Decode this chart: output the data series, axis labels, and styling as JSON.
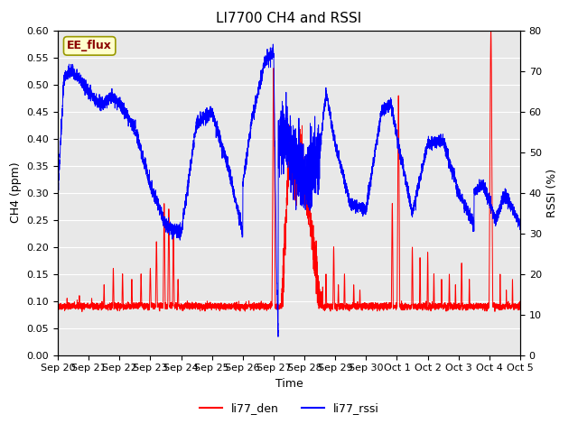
{
  "title": "LI7700 CH4 and RSSI",
  "xlabel": "Time",
  "ylabel_left": "CH4 (ppm)",
  "ylabel_right": "RSSI (%)",
  "annotation": "EE_flux",
  "legend_labels": [
    "li77_den",
    "li77_rssi"
  ],
  "legend_colors": [
    "red",
    "blue"
  ],
  "ylim_left": [
    0.0,
    0.6
  ],
  "ylim_right": [
    0,
    80
  ],
  "yticks_left": [
    0.0,
    0.05,
    0.1,
    0.15,
    0.2,
    0.25,
    0.3,
    0.35,
    0.4,
    0.45,
    0.5,
    0.55,
    0.6
  ],
  "yticks_right": [
    0,
    10,
    20,
    30,
    40,
    50,
    60,
    70,
    80
  ],
  "background_color": "#e8e8e8",
  "line_color_red": "red",
  "line_color_blue": "blue",
  "x_tick_labels": [
    "Sep 20",
    "Sep 21",
    "Sep 22",
    "Sep 23",
    "Sep 24",
    "Sep 25",
    "Sep 26",
    "Sep 27",
    "Sep 28",
    "Sep 29",
    "Sep 30",
    "Oct 1",
    "Oct 2",
    "Oct 3",
    "Oct 4",
    "Oct 5"
  ],
  "grid_color": "white",
  "title_fontsize": 11,
  "axis_label_fontsize": 9,
  "tick_fontsize": 8
}
